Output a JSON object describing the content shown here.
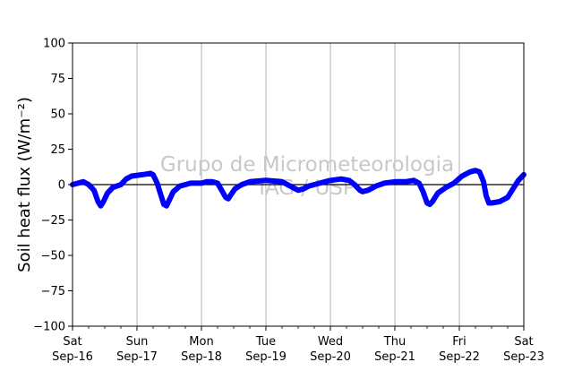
{
  "chart_data": {
    "type": "line",
    "ylabel": "Soil heat flux (W/m⁻²)",
    "ylim": [
      -100,
      100
    ],
    "yticks": [
      -100,
      -75,
      -50,
      -25,
      0,
      25,
      50,
      75,
      100
    ],
    "ytick_labels": [
      "−100",
      "−75",
      "−50",
      "−25",
      "0",
      "25",
      "50",
      "75",
      "100"
    ],
    "xlim": [
      "2017-09-16",
      "2017-09-23"
    ],
    "xticks": [
      {
        "line1": "Sat",
        "line2": "Sep-16"
      },
      {
        "line1": "Sun",
        "line2": "Sep-17"
      },
      {
        "line1": "Mon",
        "line2": "Sep-18"
      },
      {
        "line1": "Tue",
        "line2": "Sep-19"
      },
      {
        "line1": "Wed",
        "line2": "Sep-20"
      },
      {
        "line1": "Thu",
        "line2": "Sep-21"
      },
      {
        "line1": "Fri",
        "line2": "Sep-22"
      },
      {
        "line1": "Sat",
        "line2": "Sep-23"
      }
    ],
    "grid": "vertical",
    "zero_line": true,
    "watermark": [
      "Grupo de Micrometeorologia",
      "IAG / USP"
    ],
    "series": [
      {
        "color": "#0000ff",
        "points": [
          [
            "2017-09-16 00:00",
            0
          ],
          [
            "2017-09-16 02:00",
            1
          ],
          [
            "2017-09-16 04:00",
            2
          ],
          [
            "2017-09-16 06:00",
            0
          ],
          [
            "2017-09-16 08:00",
            -4
          ],
          [
            "2017-09-16 09:30",
            -12
          ],
          [
            "2017-09-16 10:30",
            -15
          ],
          [
            "2017-09-16 11:30",
            -12
          ],
          [
            "2017-09-16 13:00",
            -6
          ],
          [
            "2017-09-16 15:00",
            -2
          ],
          [
            "2017-09-16 18:00",
            0
          ],
          [
            "2017-09-16 20:00",
            4
          ],
          [
            "2017-09-16 22:00",
            6
          ],
          [
            "2017-09-17 02:00",
            7
          ],
          [
            "2017-09-17 05:00",
            8
          ],
          [
            "2017-09-17 06:00",
            7
          ],
          [
            "2017-09-17 07:30",
            1
          ],
          [
            "2017-09-17 09:00",
            -8
          ],
          [
            "2017-09-17 10:00",
            -14
          ],
          [
            "2017-09-17 11:00",
            -15
          ],
          [
            "2017-09-17 12:00",
            -11
          ],
          [
            "2017-09-17 13:30",
            -5
          ],
          [
            "2017-09-17 16:00",
            -1
          ],
          [
            "2017-09-17 20:00",
            1
          ],
          [
            "2017-09-18 00:00",
            1
          ],
          [
            "2017-09-18 02:00",
            2
          ],
          [
            "2017-09-18 04:00",
            2
          ],
          [
            "2017-09-18 06:00",
            1
          ],
          [
            "2017-09-18 07:30",
            -4
          ],
          [
            "2017-09-18 09:00",
            -9
          ],
          [
            "2017-09-18 10:00",
            -10
          ],
          [
            "2017-09-18 11:00",
            -7
          ],
          [
            "2017-09-18 12:30",
            -3
          ],
          [
            "2017-09-18 15:00",
            0
          ],
          [
            "2017-09-18 18:00",
            2
          ],
          [
            "2017-09-19 00:00",
            3
          ],
          [
            "2017-09-19 06:00",
            2
          ],
          [
            "2017-09-19 08:00",
            0
          ],
          [
            "2017-09-19 10:00",
            -2
          ],
          [
            "2017-09-19 12:00",
            -4
          ],
          [
            "2017-09-19 14:00",
            -3
          ],
          [
            "2017-09-19 16:00",
            -1
          ],
          [
            "2017-09-19 20:00",
            1
          ],
          [
            "2017-09-20 00:00",
            3
          ],
          [
            "2017-09-20 04:00",
            4
          ],
          [
            "2017-09-20 07:00",
            3
          ],
          [
            "2017-09-20 09:00",
            0
          ],
          [
            "2017-09-20 11:00",
            -4
          ],
          [
            "2017-09-20 12:00",
            -5
          ],
          [
            "2017-09-20 14:00",
            -4
          ],
          [
            "2017-09-20 17:00",
            -1
          ],
          [
            "2017-09-20 20:00",
            1
          ],
          [
            "2017-09-21 00:00",
            2
          ],
          [
            "2017-09-21 04:00",
            2
          ],
          [
            "2017-09-21 07:00",
            3
          ],
          [
            "2017-09-21 09:00",
            1
          ],
          [
            "2017-09-21 10:30",
            -5
          ],
          [
            "2017-09-21 12:00",
            -13
          ],
          [
            "2017-09-21 13:00",
            -14
          ],
          [
            "2017-09-21 14:00",
            -12
          ],
          [
            "2017-09-21 16:00",
            -6
          ],
          [
            "2017-09-21 19:00",
            -2
          ],
          [
            "2017-09-21 22:00",
            1
          ],
          [
            "2017-09-22 01:00",
            6
          ],
          [
            "2017-09-22 04:00",
            9
          ],
          [
            "2017-09-22 06:00",
            10
          ],
          [
            "2017-09-22 07:30",
            9
          ],
          [
            "2017-09-22 09:00",
            2
          ],
          [
            "2017-09-22 10:00",
            -8
          ],
          [
            "2017-09-22 11:00",
            -13
          ],
          [
            "2017-09-22 12:00",
            -13
          ],
          [
            "2017-09-22 15:00",
            -12
          ],
          [
            "2017-09-22 18:00",
            -9
          ],
          [
            "2017-09-22 20:00",
            -3
          ],
          [
            "2017-09-22 22:00",
            3
          ],
          [
            "2017-09-23 00:00",
            7
          ]
        ]
      }
    ]
  }
}
